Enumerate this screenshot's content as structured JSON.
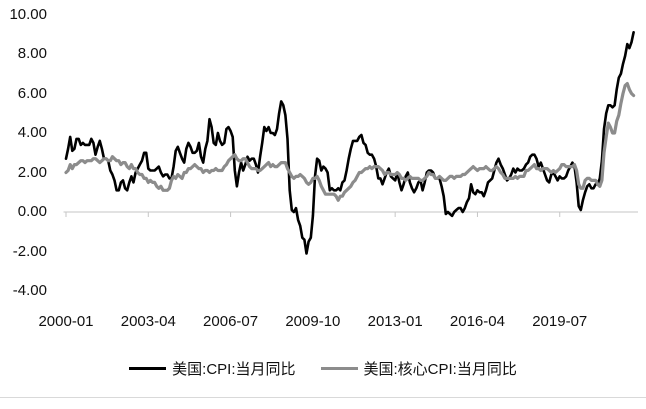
{
  "chart_data": {
    "type": "line",
    "title": "",
    "xlabel": "",
    "ylabel": "",
    "grid": false,
    "legend_position": "bottom",
    "axis_color": "#c6c6c6",
    "bottom_rule_color": "#d9d9d9",
    "ylim": [
      -4,
      10
    ],
    "y_ticks": [
      10,
      8,
      6,
      4,
      2,
      0,
      -2,
      -4
    ],
    "y_tick_labels": [
      "10.00",
      "8.00",
      "6.00",
      "4.00",
      "2.00",
      "0.00",
      "-2.00",
      "-4.00"
    ],
    "x_start": "2000-01",
    "x_end": "2022-06",
    "x_unit": "month",
    "x_tick_labels": [
      "2000-01",
      "2003-04",
      "2006-07",
      "2009-10",
      "2013-01",
      "2016-04",
      "2019-07"
    ],
    "x_tick_month_indices": [
      0,
      39,
      78,
      117,
      156,
      195,
      234
    ],
    "series": [
      {
        "name": "美国:CPI:当月同比",
        "color": "#000000",
        "stroke_width": 2.6,
        "values": [
          2.7,
          3.2,
          3.8,
          3.1,
          3.2,
          3.7,
          3.7,
          3.4,
          3.5,
          3.4,
          3.4,
          3.4,
          3.7,
          3.5,
          2.9,
          3.3,
          3.6,
          3.2,
          2.7,
          2.7,
          2.6,
          2.1,
          1.9,
          1.6,
          1.1,
          1.1,
          1.5,
          1.6,
          1.2,
          1.1,
          1.5,
          1.8,
          1.5,
          2.0,
          2.2,
          2.4,
          2.6,
          3.0,
          3.0,
          2.2,
          2.1,
          2.1,
          2.1,
          2.2,
          2.3,
          2.0,
          1.8,
          1.9,
          1.9,
          1.7,
          1.7,
          2.3,
          3.1,
          3.3,
          3.0,
          2.7,
          2.5,
          3.2,
          3.5,
          3.3,
          3.0,
          3.0,
          3.1,
          3.5,
          2.8,
          2.5,
          3.2,
          3.6,
          4.7,
          4.3,
          3.5,
          3.4,
          4.0,
          3.6,
          3.4,
          3.5,
          4.2,
          4.3,
          4.1,
          3.8,
          2.1,
          1.3,
          2.0,
          2.5,
          2.1,
          2.4,
          2.8,
          2.6,
          2.7,
          2.7,
          2.4,
          2.0,
          2.8,
          3.5,
          4.3,
          4.1,
          4.3,
          4.0,
          4.0,
          3.9,
          4.2,
          5.0,
          5.6,
          5.4,
          4.9,
          3.7,
          1.1,
          0.1,
          0.0,
          0.2,
          -0.4,
          -0.7,
          -1.3,
          -1.4,
          -2.1,
          -1.5,
          -1.3,
          -0.2,
          1.8,
          2.7,
          2.6,
          2.1,
          2.3,
          2.2,
          2.0,
          1.1,
          1.2,
          1.1,
          1.1,
          1.2,
          1.1,
          1.5,
          1.6,
          2.1,
          2.7,
          3.2,
          3.6,
          3.6,
          3.6,
          3.8,
          3.9,
          3.5,
          3.4,
          3.0,
          2.9,
          2.9,
          2.7,
          2.3,
          1.7,
          1.7,
          1.4,
          1.7,
          2.0,
          2.2,
          1.8,
          1.7,
          1.6,
          2.0,
          1.5,
          1.1,
          1.4,
          1.8,
          2.0,
          1.5,
          1.2,
          1.0,
          1.2,
          1.5,
          1.6,
          1.1,
          1.5,
          2.0,
          2.1,
          2.1,
          2.0,
          1.7,
          1.7,
          1.7,
          1.3,
          0.8,
          -0.1,
          0.0,
          -0.1,
          -0.2,
          0.0,
          0.1,
          0.2,
          0.2,
          0.0,
          0.2,
          0.5,
          0.7,
          1.4,
          1.0,
          0.9,
          1.1,
          1.0,
          1.0,
          0.8,
          1.1,
          1.5,
          1.6,
          1.7,
          2.1,
          2.5,
          2.7,
          2.4,
          2.2,
          1.9,
          1.6,
          1.7,
          1.9,
          2.2,
          2.0,
          2.2,
          2.1,
          2.1,
          2.2,
          2.4,
          2.5,
          2.8,
          2.9,
          2.9,
          2.7,
          2.3,
          2.5,
          2.2,
          1.9,
          1.6,
          1.5,
          1.9,
          2.0,
          1.8,
          1.6,
          1.8,
          1.7,
          1.7,
          1.8,
          2.1,
          2.3,
          2.5,
          2.3,
          1.5,
          0.3,
          0.1,
          0.6,
          1.0,
          1.3,
          1.4,
          1.2,
          1.2,
          1.4,
          1.4,
          1.7,
          2.6,
          4.2,
          5.0,
          5.4,
          5.4,
          5.3,
          5.4,
          6.2,
          6.8,
          7.0,
          7.5,
          7.9,
          8.5,
          8.3,
          8.6,
          9.1
        ]
      },
      {
        "name": "美国:核心CPI:当月同比",
        "color": "#8c8c8c",
        "stroke_width": 3.2,
        "values": [
          2.0,
          2.1,
          2.4,
          2.2,
          2.4,
          2.4,
          2.5,
          2.6,
          2.6,
          2.5,
          2.6,
          2.6,
          2.6,
          2.7,
          2.7,
          2.6,
          2.5,
          2.6,
          2.7,
          2.7,
          2.6,
          2.6,
          2.8,
          2.7,
          2.6,
          2.6,
          2.4,
          2.5,
          2.5,
          2.3,
          2.2,
          2.4,
          2.2,
          2.2,
          2.0,
          1.9,
          1.9,
          1.7,
          1.7,
          1.5,
          1.6,
          1.5,
          1.5,
          1.3,
          1.2,
          1.3,
          1.1,
          1.1,
          1.1,
          1.2,
          1.6,
          1.8,
          1.7,
          1.9,
          1.8,
          1.7,
          2.0,
          2.0,
          2.2,
          2.2,
          2.3,
          2.4,
          2.3,
          2.2,
          2.2,
          2.0,
          2.1,
          2.1,
          2.0,
          2.1,
          2.1,
          2.2,
          2.1,
          2.1,
          2.1,
          2.3,
          2.4,
          2.6,
          2.7,
          2.8,
          2.9,
          2.7,
          2.6,
          2.6,
          2.7,
          2.7,
          2.5,
          2.3,
          2.2,
          2.2,
          2.2,
          2.1,
          2.1,
          2.2,
          2.3,
          2.4,
          2.5,
          2.3,
          2.4,
          2.3,
          2.3,
          2.4,
          2.5,
          2.5,
          2.5,
          2.2,
          2.0,
          1.8,
          1.7,
          1.8,
          1.8,
          1.9,
          1.8,
          1.7,
          1.5,
          1.4,
          1.5,
          1.7,
          1.7,
          1.8,
          1.6,
          1.3,
          1.1,
          0.9,
          0.9,
          0.9,
          0.9,
          0.9,
          0.8,
          0.6,
          0.8,
          0.8,
          1.0,
          1.1,
          1.2,
          1.3,
          1.5,
          1.6,
          1.8,
          2.0,
          2.0,
          2.1,
          2.2,
          2.2,
          2.3,
          2.2,
          2.3,
          2.3,
          2.3,
          2.2,
          2.1,
          1.9,
          2.0,
          2.0,
          1.9,
          1.9,
          1.9,
          2.0,
          1.9,
          1.7,
          1.7,
          1.6,
          1.7,
          1.8,
          1.7,
          1.7,
          1.7,
          1.7,
          1.6,
          1.6,
          1.7,
          1.8,
          2.0,
          1.9,
          1.9,
          1.7,
          1.7,
          1.8,
          1.7,
          1.6,
          1.6,
          1.7,
          1.8,
          1.8,
          1.7,
          1.8,
          1.8,
          1.8,
          1.9,
          1.9,
          2.0,
          2.1,
          2.2,
          2.3,
          2.2,
          2.1,
          2.2,
          2.2,
          2.2,
          2.3,
          2.2,
          2.1,
          2.1,
          2.2,
          2.3,
          2.2,
          2.0,
          1.9,
          1.7,
          1.7,
          1.7,
          1.7,
          1.7,
          1.8,
          1.7,
          1.8,
          1.8,
          1.8,
          2.1,
          2.1,
          2.2,
          2.3,
          2.4,
          2.2,
          2.2,
          2.1,
          2.2,
          2.2,
          2.2,
          2.1,
          2.0,
          2.1,
          2.0,
          2.1,
          2.2,
          2.4,
          2.4,
          2.3,
          2.3,
          2.3,
          2.3,
          2.4,
          2.1,
          1.4,
          1.2,
          1.2,
          1.6,
          1.7,
          1.7,
          1.6,
          1.6,
          1.6,
          1.4,
          1.3,
          1.6,
          3.0,
          3.8,
          4.5,
          4.3,
          4.0,
          4.0,
          4.6,
          4.9,
          5.5,
          6.0,
          6.4,
          6.5,
          6.2,
          6.0,
          5.9
        ]
      }
    ]
  }
}
